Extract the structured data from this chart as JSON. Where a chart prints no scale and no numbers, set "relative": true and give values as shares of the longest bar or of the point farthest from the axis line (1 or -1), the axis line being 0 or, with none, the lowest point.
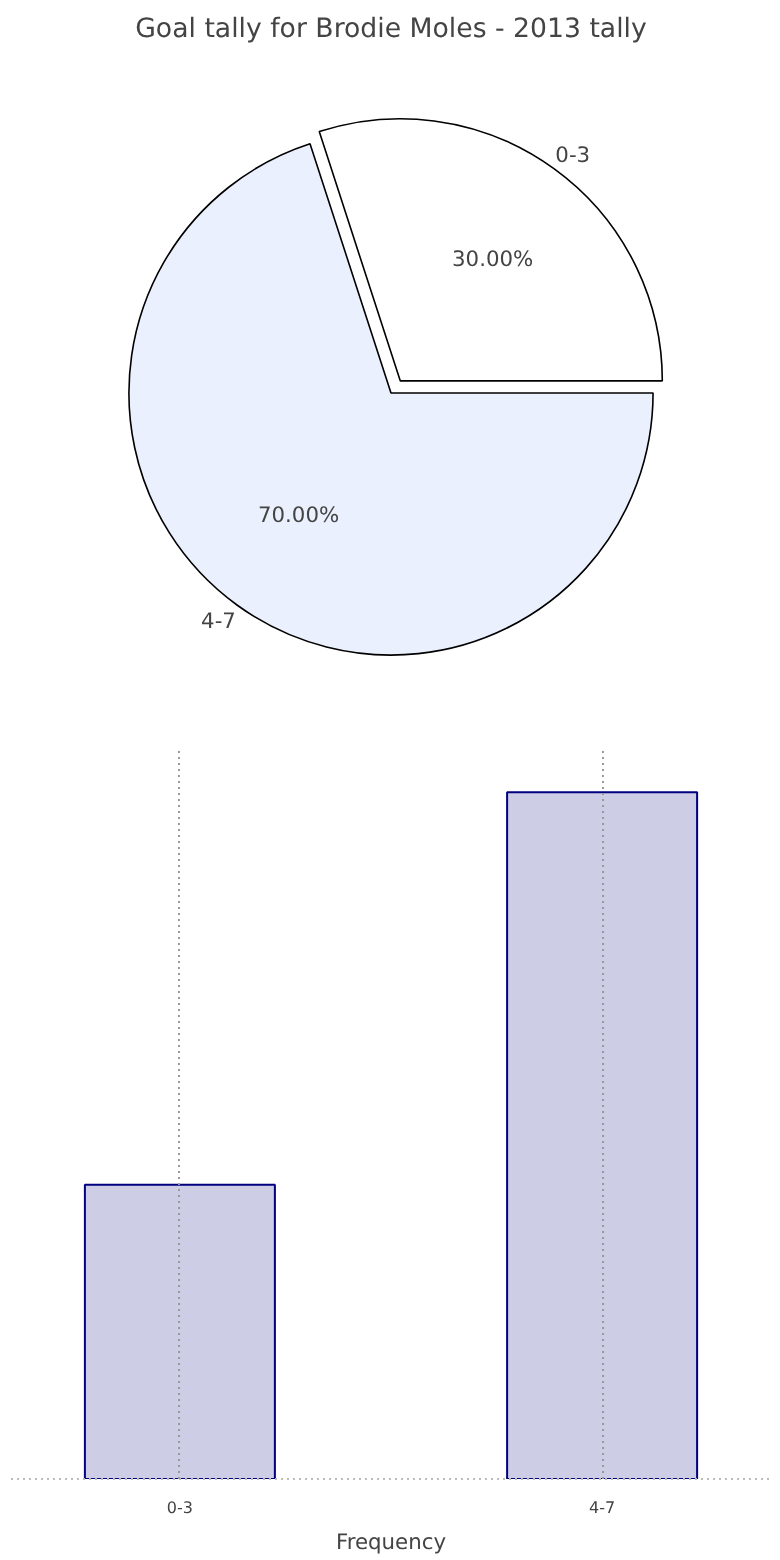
{
  "chart_data": [
    {
      "type": "pie",
      "title": "Goal tally for Brodie Moles - 2013 tally",
      "categories": [
        "0-3",
        "4-7"
      ],
      "values": [
        30,
        70
      ],
      "colors": [
        "#ffffff",
        "#eaf0fd"
      ],
      "value_labels": [
        "30.00%",
        "70.00%"
      ]
    },
    {
      "type": "bar",
      "xlabel": "Frequency",
      "categories": [
        "0-3",
        "4-7"
      ],
      "values": [
        0.4286,
        1
      ],
      "color": "#cdcde6",
      "relative": true,
      "grid": "x"
    }
  ]
}
